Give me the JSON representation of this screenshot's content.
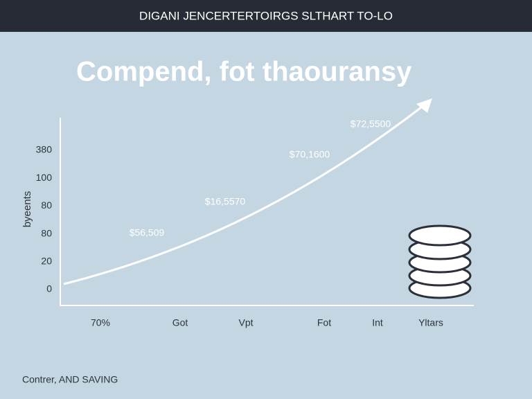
{
  "header": {
    "title": "DIGANI JENCERTERTOIRGS SLTHART TO-LO"
  },
  "title": "Compend, fot thaouransy",
  "y_axis": {
    "label": "byeents",
    "ticks": [
      "380",
      "100",
      "80",
      "80",
      "20",
      "0"
    ]
  },
  "x_axis": {
    "ticks": [
      "70%",
      "Got",
      "Vpt",
      "Fot",
      "Int",
      "Yltars"
    ]
  },
  "annotations": [
    "$56,509",
    "$16,5570",
    "$70,1600",
    "$72,5500"
  ],
  "footer": "Contrer, AND SAVING"
}
